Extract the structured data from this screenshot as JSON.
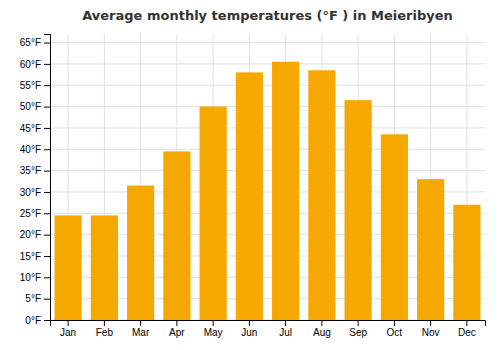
{
  "chart_data": {
    "type": "bar",
    "title": "Average monthly temperatures (°F ) in Meieribyen",
    "categories": [
      "Jan",
      "Feb",
      "Mar",
      "Apr",
      "May",
      "Jun",
      "Jul",
      "Aug",
      "Sep",
      "Oct",
      "Nov",
      "Dec"
    ],
    "values": [
      24.5,
      24.5,
      31.5,
      39.5,
      50.0,
      58.0,
      60.5,
      58.5,
      51.5,
      43.5,
      33.0,
      27.0
    ],
    "color": "#F5A800",
    "ylim": [
      0,
      67
    ],
    "yticks": [
      {
        "value": 0,
        "label": "0°F"
      },
      {
        "value": 5,
        "label": "5°F"
      },
      {
        "value": 10,
        "label": "10°F"
      },
      {
        "value": 15,
        "label": "15°F"
      },
      {
        "value": 20,
        "label": "20°F"
      },
      {
        "value": 25,
        "label": "25°F"
      },
      {
        "value": 30,
        "label": "30°F"
      },
      {
        "value": 35,
        "label": "35°F"
      },
      {
        "value": 40,
        "label": "40°F"
      },
      {
        "value": 45,
        "label": "45°F"
      },
      {
        "value": 50,
        "label": "50°F"
      },
      {
        "value": 55,
        "label": "55°F"
      },
      {
        "value": 60,
        "label": "60°F"
      },
      {
        "value": 65,
        "label": "65°F"
      }
    ],
    "grid": true
  }
}
